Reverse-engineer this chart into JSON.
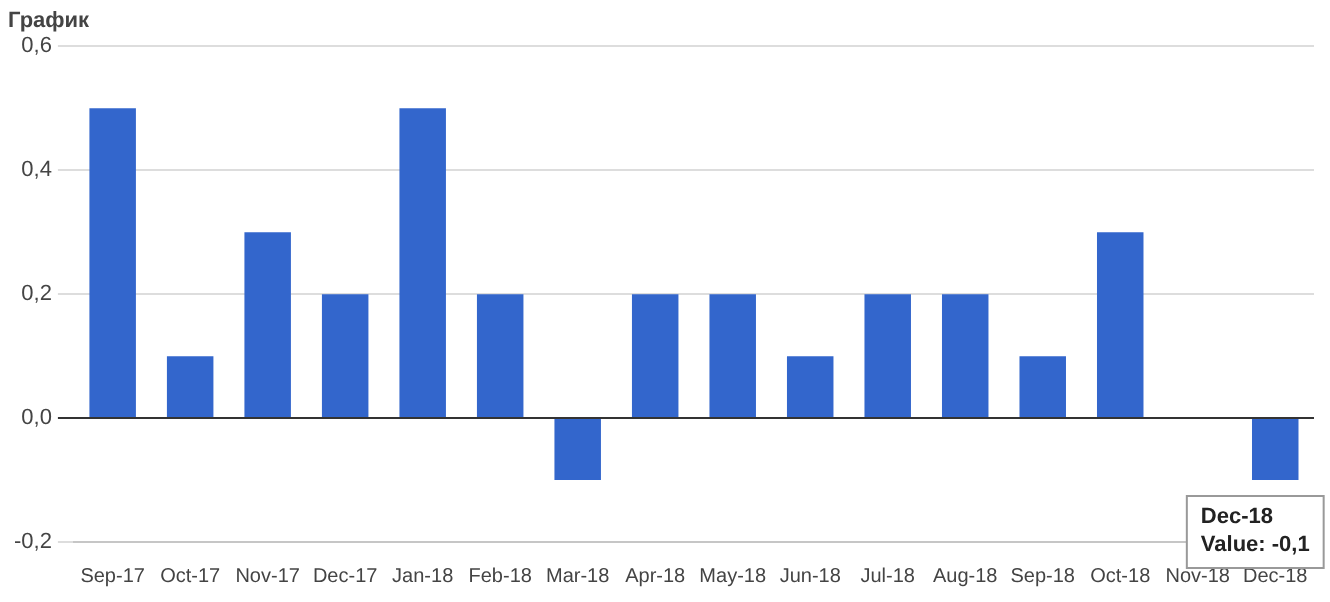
{
  "chart_data": {
    "type": "bar",
    "title": "График",
    "categories": [
      "Sep-17",
      "Oct-17",
      "Nov-17",
      "Dec-17",
      "Jan-18",
      "Feb-18",
      "Mar-18",
      "Apr-18",
      "May-18",
      "Jun-18",
      "Jul-18",
      "Aug-18",
      "Sep-18",
      "Oct-18",
      "Nov-18",
      "Dec-18"
    ],
    "values": [
      0.5,
      0.1,
      0.3,
      0.2,
      0.5,
      0.2,
      -0.1,
      0.2,
      0.2,
      0.1,
      0.2,
      0.2,
      0.1,
      0.3,
      0,
      -0.1
    ],
    "color": "#3366cc",
    "ylim": [
      -0.2,
      0.6
    ],
    "yticks": [
      {
        "value": -0.2,
        "label": "-0,2"
      },
      {
        "value": 0,
        "label": "0,0"
      },
      {
        "value": 0.2,
        "label": "0,2"
      },
      {
        "value": 0.4,
        "label": "0,4"
      },
      {
        "value": 0.6,
        "label": "0,6"
      }
    ],
    "grid": "y",
    "annotations": [
      {
        "text": "Dec-18\nValue: -0,1",
        "x": "Dec-18",
        "y": -0.1
      }
    ]
  }
}
